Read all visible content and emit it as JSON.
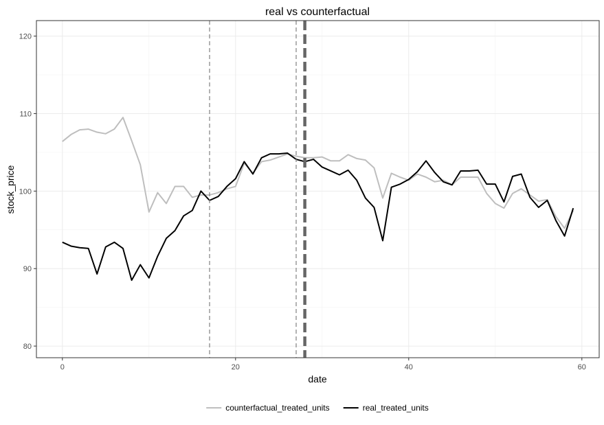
{
  "chart_data": {
    "type": "line",
    "title": "real vs counterfactual",
    "xlabel": "date",
    "ylabel": "stock_price",
    "xlim": [
      -3,
      62
    ],
    "ylim": [
      78.5,
      122
    ],
    "x_ticks": [
      0,
      20,
      40,
      60
    ],
    "y_ticks": [
      80,
      90,
      100,
      110,
      120
    ],
    "x_tick_labels": [
      "0",
      "20",
      "40",
      "60"
    ],
    "y_tick_labels": [
      "80",
      "90",
      "100",
      "110",
      "120"
    ],
    "grid": true,
    "legend_position": "bottom",
    "vlines": [
      {
        "x": 17,
        "style": "thin-dashed",
        "color": "#808080"
      },
      {
        "x": 27,
        "style": "thin-dashed",
        "color": "#808080"
      },
      {
        "x": 28,
        "style": "thick-dashed",
        "color": "#666666"
      }
    ],
    "series": [
      {
        "name": "counterfactual_treated_units",
        "color": "#bebebe",
        "x": [
          0,
          1,
          2,
          3,
          4,
          5,
          6,
          7,
          8,
          9,
          10,
          11,
          12,
          13,
          14,
          15,
          16,
          17,
          18,
          19,
          20,
          21,
          22,
          23,
          24,
          25,
          26,
          27,
          28,
          29,
          30,
          31,
          32,
          33,
          34,
          35,
          36,
          37,
          38,
          39,
          40,
          41,
          42,
          43,
          44,
          45,
          46,
          47,
          48,
          49,
          50,
          51,
          52,
          53,
          54,
          55,
          56,
          57,
          58,
          59
        ],
        "values": [
          106.4,
          107.3,
          107.9,
          108.0,
          107.6,
          107.4,
          108.0,
          109.5,
          106.5,
          103.4,
          97.3,
          99.8,
          98.4,
          100.6,
          100.6,
          99.2,
          99.5,
          99.5,
          99.8,
          100.3,
          100.6,
          103.6,
          102.3,
          103.8,
          104.0,
          104.4,
          104.8,
          104.5,
          104.3,
          104.3,
          104.4,
          103.9,
          103.9,
          104.7,
          104.2,
          104.0,
          103.0,
          99.1,
          102.3,
          101.8,
          101.4,
          102.2,
          101.8,
          101.2,
          101.4,
          100.8,
          101.8,
          101.8,
          101.8,
          99.7,
          98.4,
          97.8,
          99.7,
          100.3,
          99.5,
          98.7,
          98.9,
          96.7,
          95.2,
          97.5
        ]
      },
      {
        "name": "real_treated_units",
        "color": "#000000",
        "x": [
          0,
          1,
          2,
          3,
          4,
          5,
          6,
          7,
          8,
          9,
          10,
          11,
          12,
          13,
          14,
          15,
          16,
          17,
          18,
          19,
          20,
          21,
          22,
          23,
          24,
          25,
          26,
          27,
          28,
          29,
          30,
          31,
          32,
          33,
          34,
          35,
          36,
          37,
          38,
          39,
          40,
          41,
          42,
          43,
          44,
          45,
          46,
          47,
          48,
          49,
          50,
          51,
          52,
          53,
          54,
          55,
          56,
          57,
          58,
          59
        ],
        "values": [
          93.4,
          92.9,
          92.7,
          92.6,
          89.3,
          92.8,
          93.4,
          92.6,
          88.5,
          90.5,
          88.8,
          91.6,
          93.9,
          94.9,
          96.8,
          97.5,
          100.0,
          98.8,
          99.3,
          100.6,
          101.6,
          103.8,
          102.2,
          104.3,
          104.8,
          104.8,
          104.9,
          104.1,
          103.8,
          104.1,
          103.1,
          102.6,
          102.1,
          102.7,
          101.4,
          99.1,
          97.9,
          93.6,
          100.5,
          100.9,
          101.5,
          102.5,
          103.9,
          102.4,
          101.2,
          100.8,
          102.6,
          102.6,
          102.7,
          100.9,
          100.9,
          98.6,
          101.9,
          102.2,
          99.2,
          97.9,
          98.8,
          96.2,
          94.2,
          97.8
        ]
      }
    ]
  }
}
